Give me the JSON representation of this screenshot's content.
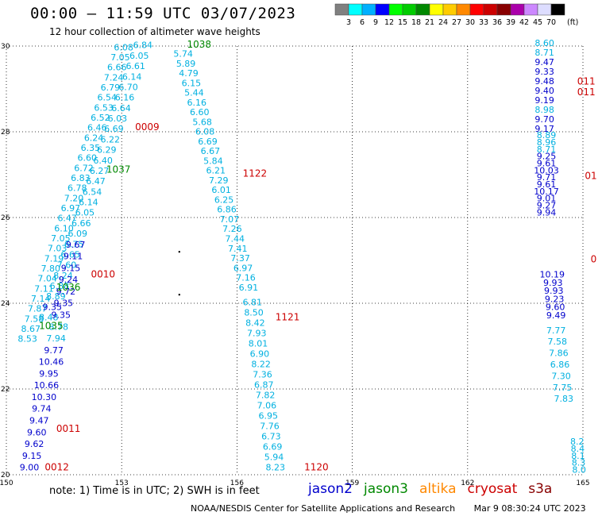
{
  "header": {
    "title": "00:00 – 11:59 UTC 03/07/2023",
    "subtitle": "12 hour collection of altimeter wave heights"
  },
  "colorbar": {
    "colors": [
      "#808080",
      "#00ffff",
      "#00b0ff",
      "#0000ff",
      "#00ff00",
      "#00cc00",
      "#008800",
      "#ffff00",
      "#ffcc00",
      "#ff8800",
      "#ff0000",
      "#cc0000",
      "#880000",
      "#aa00aa",
      "#cc88ff",
      "#ddddff",
      "#000000"
    ],
    "labels": [
      "3",
      "6",
      "9",
      "12",
      "15",
      "18",
      "21",
      "24",
      "27",
      "30",
      "33",
      "36",
      "39",
      "42",
      "45",
      "70"
    ],
    "unit": "(ft)"
  },
  "map": {
    "lon_range": [
      150,
      165
    ],
    "lat_range": [
      20,
      30
    ],
    "x_ticks": [
      "150",
      "153",
      "156",
      "159",
      "162",
      "165"
    ],
    "y_ticks": [
      "20",
      "22",
      "24",
      "26",
      "28",
      "30"
    ],
    "time_labels": [
      {
        "text": "1038",
        "lon": 154.7,
        "lat": 29.96,
        "sat": "jason3"
      },
      {
        "text": "0009",
        "lon": 153.35,
        "lat": 28.04,
        "sat": "cryosat"
      },
      {
        "text": "1037",
        "lon": 152.6,
        "lat": 27.05,
        "sat": "jason3"
      },
      {
        "text": "1122",
        "lon": 156.15,
        "lat": 26.95,
        "sat": "cryosat"
      },
      {
        "text": "0010",
        "lon": 152.2,
        "lat": 24.6,
        "sat": "cryosat"
      },
      {
        "text": "1036",
        "lon": 151.3,
        "lat": 24.3,
        "sat": "jason3"
      },
      {
        "text": "1035",
        "lon": 150.85,
        "lat": 23.4,
        "sat": "jason3"
      },
      {
        "text": "1121",
        "lon": 157.0,
        "lat": 23.6,
        "sat": "cryosat"
      },
      {
        "text": "0011",
        "lon": 151.3,
        "lat": 21.0,
        "sat": "cryosat"
      },
      {
        "text": "0012",
        "lon": 151.0,
        "lat": 20.1,
        "sat": "cryosat"
      },
      {
        "text": "1120",
        "lon": 157.75,
        "lat": 20.1,
        "sat": "cryosat"
      },
      {
        "text": "011",
        "lon": 164.85,
        "lat": 29.1,
        "sat": "cryosat"
      },
      {
        "text": "011",
        "lon": 164.85,
        "lat": 28.85,
        "sat": "cryosat"
      },
      {
        "text": "01",
        "lon": 165.05,
        "lat": 26.9,
        "sat": "cryosat"
      },
      {
        "text": "0",
        "lon": 165.2,
        "lat": 24.95,
        "sat": "cryosat"
      }
    ],
    "tracks": [
      {
        "sat": "jason3",
        "start": [
          153.05,
          29.9
        ],
        "end": [
          150.55,
          23.1
        ],
        "values": [
          "6.08",
          "7.05",
          "6.66",
          "7.24",
          "6.79",
          "6.54",
          "6.53",
          "6.52",
          "6.46",
          "6.24",
          "6.35",
          "6.60",
          "6.72",
          "6.83",
          "6.78",
          "7.20",
          "6.97",
          "6.47",
          "6.10",
          "7.05",
          "7.03",
          "7.19",
          "7.80",
          "7.04",
          "7.11",
          "7.14",
          "7.87",
          "7.58",
          "8.67",
          "8.53"
        ]
      },
      {
        "sat": "jason3",
        "start": [
          153.55,
          29.95
        ],
        "end": [
          151.1,
          23.6
        ],
        "values": [
          "6.84",
          "6.05",
          "6.61",
          "6.14",
          "6.70",
          "6.16",
          "6.64",
          "6.03",
          "6.69",
          "6.22",
          "6.29",
          "6.40",
          "6.27",
          "6.47",
          "6.54",
          "6.14",
          "6.05",
          "6.66",
          "6.09",
          "6.75",
          "6.65",
          "7.60",
          "8.24",
          "6.88",
          "8.89",
          "9.35",
          "8.48"
        ]
      },
      {
        "sat": "jason2",
        "start": [
          151.8,
          25.3
        ],
        "end": [
          150.6,
          20.1
        ],
        "values": [
          "9.67",
          "9.11",
          "9.15",
          "9.24",
          "9.72",
          "9.35",
          "9.35",
          "8.78",
          "7.94",
          "9.77",
          "10.46",
          "9.95",
          "10.66",
          "10.30",
          "9.74",
          "9.47",
          "9.60",
          "9.62",
          "9.15",
          "9.00"
        ]
      },
      {
        "sat": "jason3",
        "start": [
          154.6,
          29.75
        ],
        "end": [
          156.3,
          24.3
        ],
        "values": [
          "5.74",
          "5.89",
          "4.79",
          "6.15",
          "5.44",
          "6.16",
          "6.60",
          "5.68",
          "6.08",
          "6.69",
          "6.67",
          "5.84",
          "6.21",
          "7.29",
          "6.01",
          "6.25",
          "6.86",
          "7.07",
          "7.26",
          "7.44",
          "7.41",
          "7.37",
          "6.97",
          "7.16",
          "6.91"
        ]
      },
      {
        "sat": "jason3",
        "start": [
          156.4,
          23.95
        ],
        "end": [
          157.0,
          20.1
        ],
        "values": [
          "6.81",
          "8.50",
          "8.42",
          "7.93",
          "8.01",
          "6.90",
          "8.22",
          "7.36",
          "6.87",
          "7.82",
          "7.06",
          "6.95",
          "7.76",
          "6.73",
          "6.69",
          "5.94",
          "8.23"
        ]
      },
      {
        "sat": "jason3",
        "start": [
          164.0,
          30.0
        ],
        "end": [
          164.0,
          28.0
        ],
        "values": [
          "8.60",
          "8.71",
          "9.47",
          "9.33",
          "9.48",
          "9.40",
          "9.19",
          "8.98",
          "9.70",
          "9.17"
        ]
      },
      {
        "sat": "jason2",
        "start": [
          164.05,
          27.85
        ],
        "end": [
          164.05,
          26.05
        ],
        "values": [
          "8.89",
          "8.96",
          "8.71",
          "9.25",
          "9.61",
          "10.03",
          "9.71",
          "9.61",
          "10.17",
          "9.01",
          "9.27",
          "9.94"
        ]
      },
      {
        "sat": "jason2",
        "start": [
          164.2,
          24.6
        ],
        "end": [
          164.3,
          23.65
        ],
        "values": [
          "10.19",
          "9.93",
          "9.93",
          "9.23",
          "9.60",
          "9.49"
        ]
      },
      {
        "sat": "jason3",
        "start": [
          164.3,
          23.3
        ],
        "end": [
          164.5,
          21.7
        ],
        "values": [
          "7.77",
          "7.58",
          "7.86",
          "6.86",
          "7.30",
          "7.75",
          "7.83"
        ]
      },
      {
        "sat": "jason3",
        "start": [
          164.85,
          20.7
        ],
        "end": [
          164.9,
          20.05
        ],
        "values": [
          "8.2",
          "8.4",
          "8.1",
          "8.3",
          "8.0"
        ]
      }
    ]
  },
  "footer": {
    "note": "note:  1) Time is in UTC;  2) SWH is in feet",
    "satellites": [
      {
        "name": "jason2",
        "color": "#0000cc"
      },
      {
        "name": "jason3",
        "color": "#008800"
      },
      {
        "name": "altika",
        "color": "#ff8800"
      },
      {
        "name": "cryosat",
        "color": "#cc0000"
      },
      {
        "name": "s3a",
        "color": "#880000"
      }
    ],
    "credit": "NOAA/NESDIS Center for Satellite Applications and Research",
    "timestamp": "Mar  9 08:30:24 UTC 2023"
  }
}
